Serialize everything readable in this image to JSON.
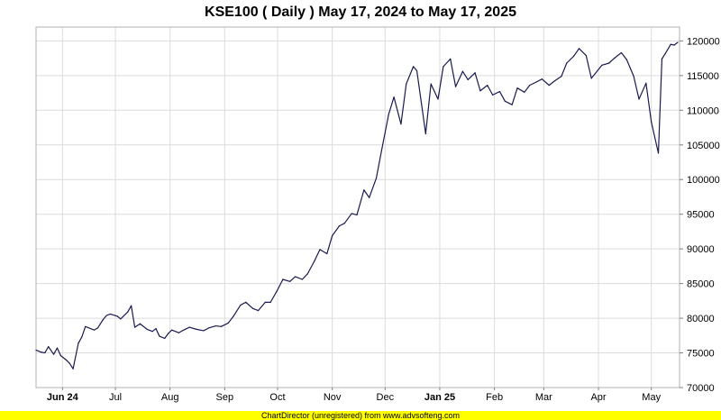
{
  "chart_data": {
    "type": "line",
    "title": "KSE100 ( Daily ) May 17, 2024 to May 17, 2025",
    "xlabel": "",
    "ylabel": "",
    "ylim": [
      70000,
      122000
    ],
    "xlim": [
      "2024-05-17",
      "2025-05-17"
    ],
    "grid": true,
    "y_axis_side": "right",
    "y_ticks": [
      70000,
      75000,
      80000,
      85000,
      90000,
      95000,
      100000,
      105000,
      110000,
      115000,
      120000
    ],
    "x_ticks": [
      {
        "label": "Jun 24",
        "date": "2024-06-01",
        "bold": true
      },
      {
        "label": "Jul",
        "date": "2024-07-01",
        "bold": false
      },
      {
        "label": "Aug",
        "date": "2024-08-01",
        "bold": false
      },
      {
        "label": "Sep",
        "date": "2024-09-01",
        "bold": false
      },
      {
        "label": "Oct",
        "date": "2024-10-01",
        "bold": false
      },
      {
        "label": "Nov",
        "date": "2024-11-01",
        "bold": false
      },
      {
        "label": "Dec",
        "date": "2024-12-01",
        "bold": false
      },
      {
        "label": "Jan 25",
        "date": "2025-01-01",
        "bold": true
      },
      {
        "label": "Feb",
        "date": "2025-02-01",
        "bold": false
      },
      {
        "label": "Mar",
        "date": "2025-03-01",
        "bold": false
      },
      {
        "label": "Apr",
        "date": "2025-04-01",
        "bold": false
      },
      {
        "label": "May",
        "date": "2025-05-01",
        "bold": false
      }
    ],
    "line_color": "#1a1a4e",
    "series": [
      {
        "x": [
          "2024-05-17",
          "2024-05-20",
          "2024-05-22",
          "2024-05-24",
          "2024-05-27",
          "2024-05-29",
          "2024-05-31",
          "2024-06-03",
          "2024-06-05",
          "2024-06-07",
          "2024-06-10",
          "2024-06-12",
          "2024-06-14",
          "2024-06-19",
          "2024-06-21",
          "2024-06-24",
          "2024-06-26",
          "2024-06-28",
          "2024-07-02",
          "2024-07-04",
          "2024-07-08",
          "2024-07-10",
          "2024-07-12",
          "2024-07-15",
          "2024-07-19",
          "2024-07-22",
          "2024-07-24",
          "2024-07-26",
          "2024-07-29",
          "2024-07-31",
          "2024-08-02",
          "2024-08-06",
          "2024-08-08",
          "2024-08-12",
          "2024-08-16",
          "2024-08-20",
          "2024-08-23",
          "2024-08-27",
          "2024-08-30",
          "2024-09-03",
          "2024-09-06",
          "2024-09-10",
          "2024-09-13",
          "2024-09-17",
          "2024-09-20",
          "2024-09-24",
          "2024-09-27",
          "2024-10-01",
          "2024-10-04",
          "2024-10-08",
          "2024-10-11",
          "2024-10-15",
          "2024-10-18",
          "2024-10-22",
          "2024-10-25",
          "2024-10-29",
          "2024-11-01",
          "2024-11-05",
          "2024-11-08",
          "2024-11-12",
          "2024-11-15",
          "2024-11-19",
          "2024-11-22",
          "2024-11-26",
          "2024-11-29",
          "2024-12-03",
          "2024-12-06",
          "2024-12-10",
          "2024-12-13",
          "2024-12-17",
          "2024-12-19",
          "2024-12-24",
          "2024-12-27",
          "2024-12-31",
          "2025-01-03",
          "2025-01-07",
          "2025-01-10",
          "2025-01-14",
          "2025-01-17",
          "2025-01-21",
          "2025-01-24",
          "2025-01-28",
          "2025-01-31",
          "2025-02-04",
          "2025-02-07",
          "2025-02-11",
          "2025-02-14",
          "2025-02-18",
          "2025-02-21",
          "2025-02-25",
          "2025-02-28",
          "2025-03-04",
          "2025-03-07",
          "2025-03-11",
          "2025-03-14",
          "2025-03-18",
          "2025-03-21",
          "2025-03-25",
          "2025-03-28",
          "2025-04-03",
          "2025-04-07",
          "2025-04-10",
          "2025-04-14",
          "2025-04-17",
          "2025-04-21",
          "2025-04-24",
          "2025-04-28",
          "2025-05-01",
          "2025-05-05",
          "2025-05-07",
          "2025-05-09",
          "2025-05-12",
          "2025-05-14",
          "2025-05-16"
        ],
        "values": [
          75400,
          75100,
          75000,
          75900,
          74800,
          75700,
          74600,
          74000,
          73500,
          72700,
          76400,
          77300,
          78800,
          78300,
          78600,
          79800,
          80400,
          80600,
          80300,
          79900,
          80900,
          81800,
          78700,
          79200,
          78400,
          78100,
          78500,
          77400,
          77100,
          77800,
          78300,
          77900,
          78200,
          78700,
          78400,
          78200,
          78600,
          78900,
          78800,
          79300,
          80300,
          81900,
          82300,
          81400,
          81100,
          82300,
          82300,
          84100,
          85600,
          85300,
          86000,
          85600,
          86400,
          88300,
          89900,
          89300,
          91900,
          93300,
          93700,
          95100,
          94900,
          98500,
          97400,
          100200,
          104200,
          109400,
          111900,
          108000,
          113800,
          116300,
          115700,
          106600,
          113800,
          111600,
          116300,
          117400,
          113400,
          115600,
          114400,
          115400,
          112800,
          113600,
          112200,
          112700,
          111300,
          110800,
          113200,
          112600,
          113600,
          114100,
          114500,
          113600,
          114200,
          114900,
          116800,
          117800,
          118900,
          117900,
          114600,
          116500,
          116800,
          117500,
          118300,
          117300,
          114900,
          111600,
          113900,
          108300,
          103800,
          117400,
          118200,
          119500,
          119400,
          119800
        ]
      }
    ]
  },
  "footer": {
    "text": "ChartDirector (unregistered) from www.advsofteng.com",
    "background": "#ffff00"
  }
}
